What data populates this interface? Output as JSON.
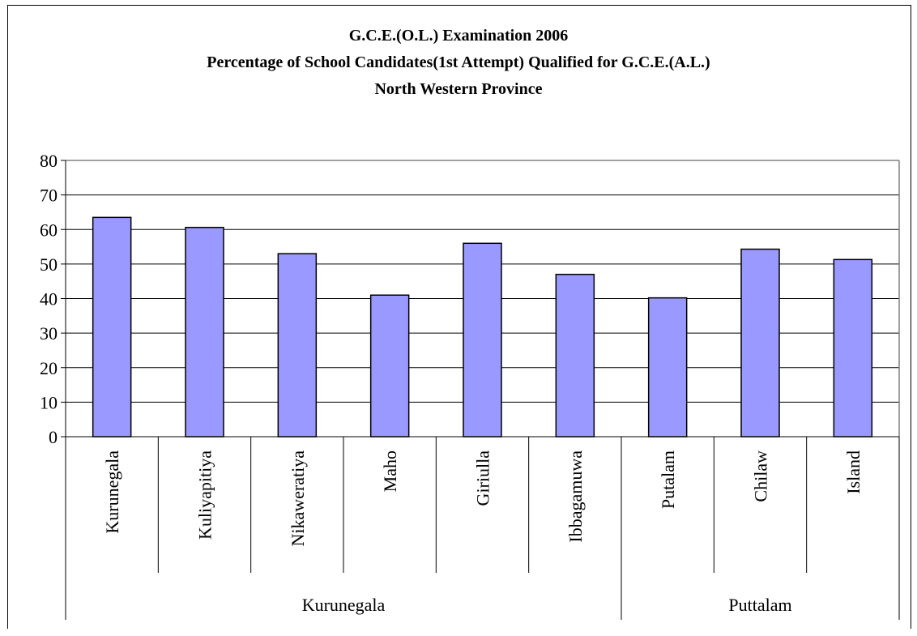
{
  "chart_data": {
    "type": "bar",
    "title": "G.C.E.(O.L.) Examination 2006",
    "subtitle": "Percentage of School Candidates(1st Attempt) Qualified for G.C.E.(A.L.)",
    "region": "North Western Province",
    "categories": [
      "Kurunegala",
      "Kuliyapitiya",
      "Nikaweratiya",
      "Maho",
      "Giriulla",
      "Ibbagamuwa",
      "Putalam",
      "Chilaw",
      "Island"
    ],
    "groups": [
      {
        "label": "Kurunegala",
        "count": 6
      },
      {
        "label": "Puttalam",
        "count": 3
      }
    ],
    "values": [
      63.5,
      60.6,
      53.0,
      41.0,
      56.0,
      47.0,
      40.2,
      54.3,
      51.3
    ],
    "ylim": [
      0,
      80
    ],
    "yticks": [
      "0",
      "10",
      "20",
      "30",
      "40",
      "50",
      "60",
      "70",
      "80"
    ],
    "grid": true,
    "bar_color": "#9999ff",
    "xlabel": "",
    "ylabel": ""
  }
}
